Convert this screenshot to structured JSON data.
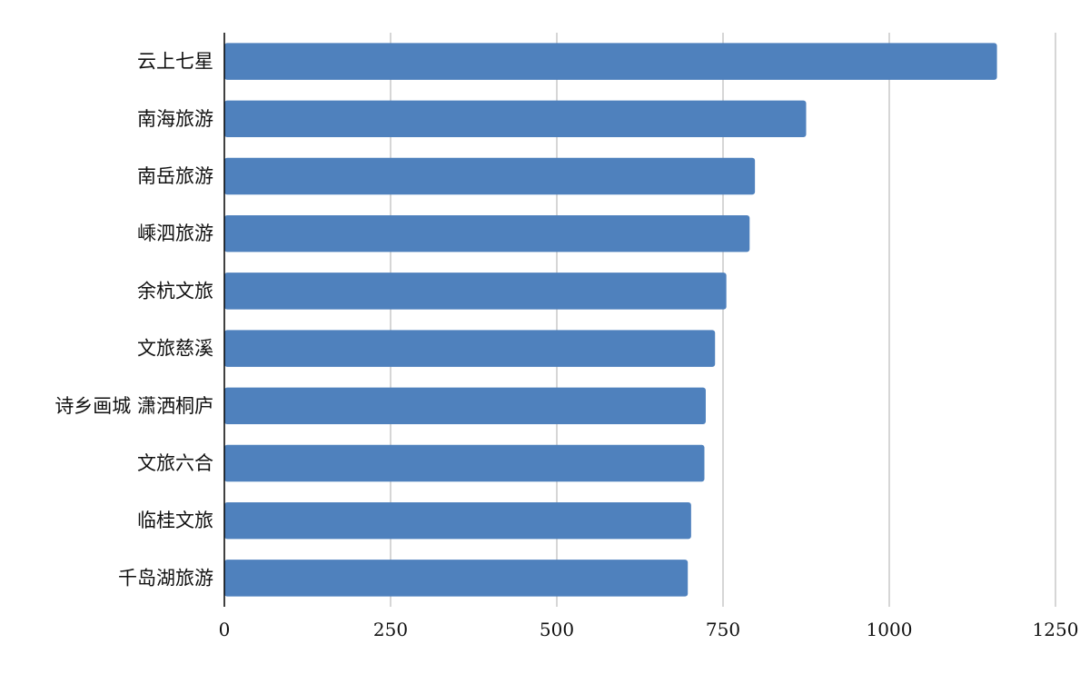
{
  "chart_data": {
    "type": "bar",
    "orientation": "horizontal",
    "title": "",
    "xlabel": "",
    "ylabel": "",
    "categories": [
      "云上七星",
      "南海旅游",
      "南岳旅游",
      "嵊泗旅游",
      "余杭文旅",
      "文旅慈溪",
      "诗乡画城 潇洒桐庐",
      "文旅六合",
      "临桂文旅",
      "千岛湖旅游"
    ],
    "values": [
      1162,
      875,
      798,
      790,
      755,
      738,
      724,
      722,
      702,
      697
    ],
    "xlim": [
      0,
      1250
    ],
    "xticks": [
      0,
      250,
      500,
      750,
      1000,
      1250
    ],
    "xtick_labels": [
      "0",
      "250",
      "500",
      "750",
      "1000",
      "1250"
    ],
    "grid": "vertical",
    "legend": "none",
    "bar_color": "#4f81bd"
  }
}
